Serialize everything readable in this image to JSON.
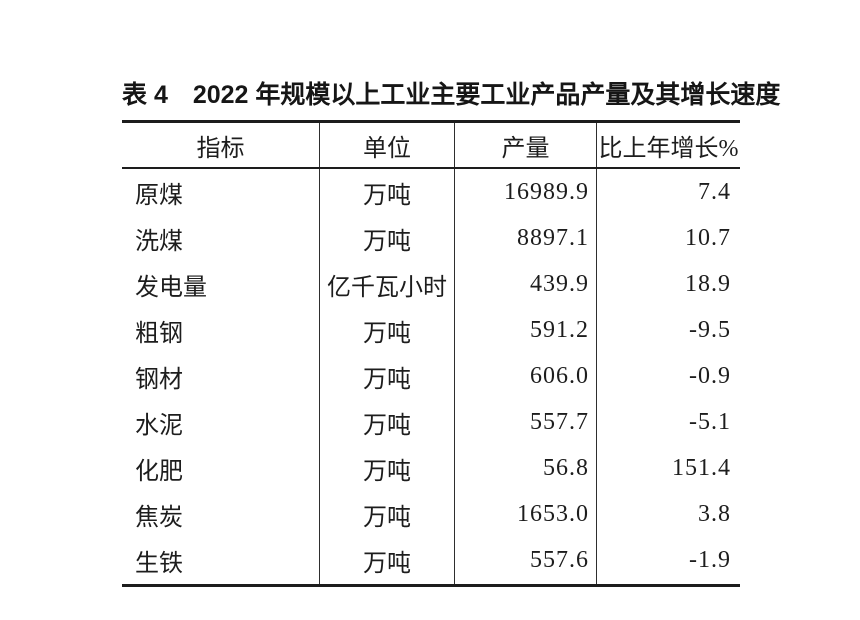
{
  "page": {
    "title": "表 4　2022 年规模以上工业主要工业产品产量及其增长速度"
  },
  "table": {
    "headers": {
      "indicator": "指标",
      "unit": "单位",
      "output": "产量",
      "growth": "比上年增长%"
    },
    "rows": [
      {
        "indicator": "原煤",
        "unit": "万吨",
        "output": "16989.9",
        "growth": "7.4"
      },
      {
        "indicator": "洗煤",
        "unit": "万吨",
        "output": "8897.1",
        "growth": "10.7"
      },
      {
        "indicator": "发电量",
        "unit": "亿千瓦小时",
        "output": "439.9",
        "growth": "18.9"
      },
      {
        "indicator": "粗钢",
        "unit": "万吨",
        "output": "591.2",
        "growth": "-9.5"
      },
      {
        "indicator": "钢材",
        "unit": "万吨",
        "output": "606.0",
        "growth": "-0.9"
      },
      {
        "indicator": "水泥",
        "unit": "万吨",
        "output": "557.7",
        "growth": "-5.1"
      },
      {
        "indicator": "化肥",
        "unit": "万吨",
        "output": "56.8",
        "growth": "151.4"
      },
      {
        "indicator": "焦炭",
        "unit": "万吨",
        "output": "1653.0",
        "growth": "3.8"
      },
      {
        "indicator": "生铁",
        "unit": "万吨",
        "output": "557.6",
        "growth": "-1.9"
      }
    ]
  }
}
